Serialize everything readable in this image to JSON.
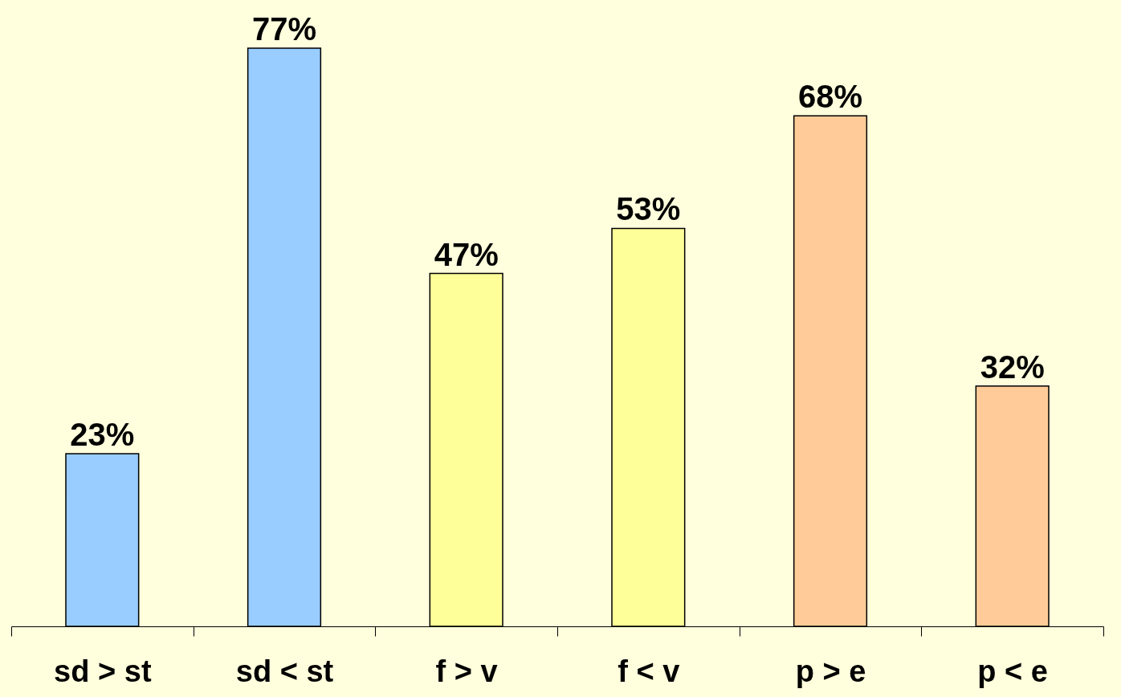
{
  "chart_data": {
    "type": "bar",
    "categories": [
      "sd > st",
      "sd < st",
      "f > v",
      "f < v",
      "p > e",
      "p < e"
    ],
    "values": [
      23,
      77,
      47,
      53,
      68,
      32
    ],
    "colors": [
      "#99ccff",
      "#99ccff",
      "#ffff99",
      "#ffff99",
      "#ffcc99",
      "#ffcc99"
    ],
    "value_labels": [
      "23%",
      "77%",
      "47%",
      "53%",
      "68%",
      "32%"
    ],
    "grid": false
  }
}
